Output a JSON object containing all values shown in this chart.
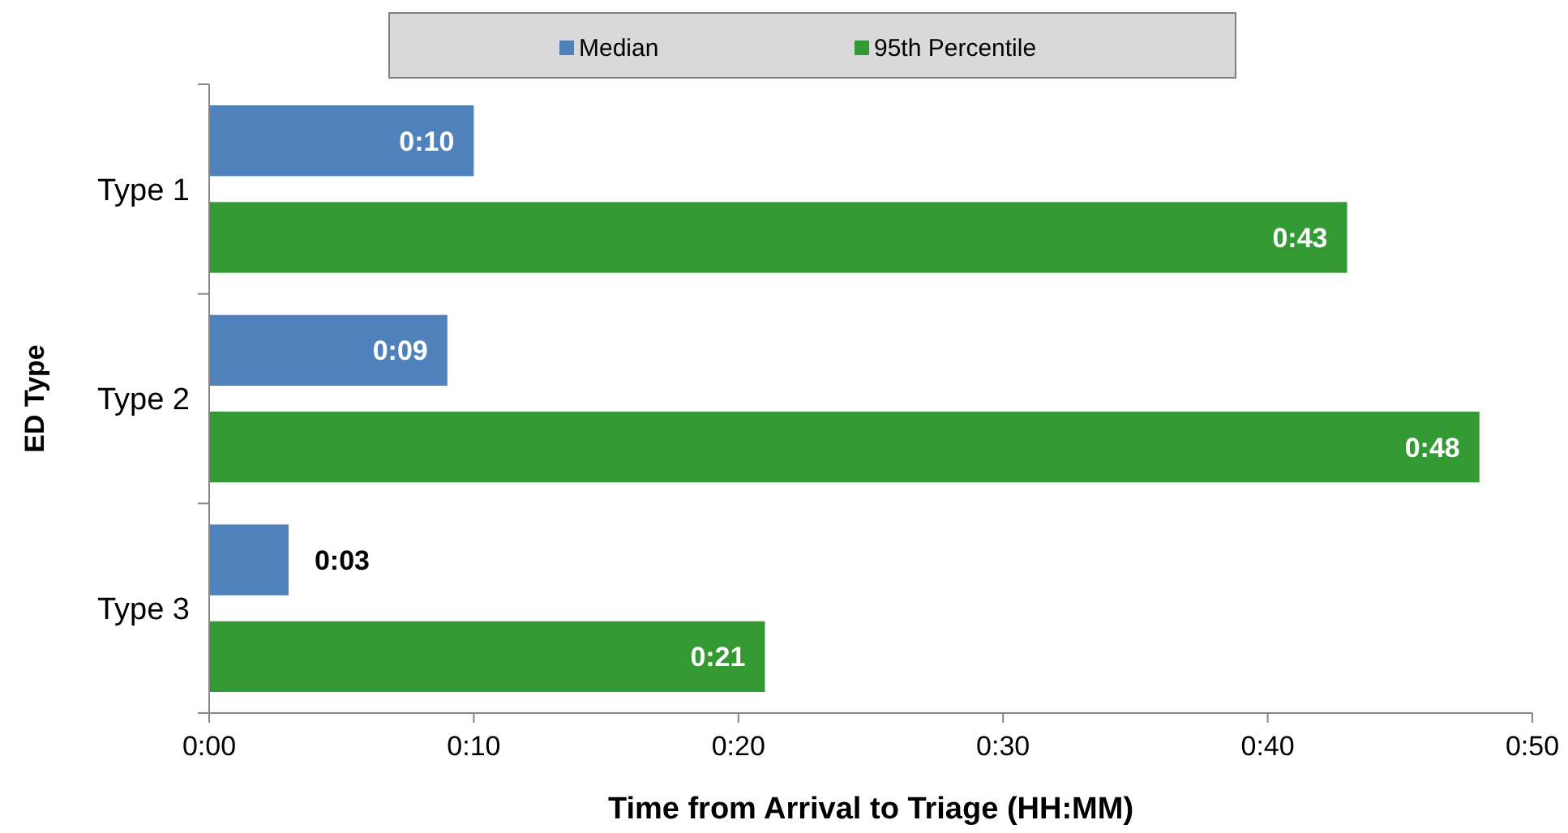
{
  "chart_data": {
    "type": "bar",
    "orientation": "horizontal",
    "xlabel": "Time from Arrival to Triage (HH:MM)",
    "ylabel": "ED Type",
    "categories": [
      "Type 1",
      "Type 2",
      "Type 3"
    ],
    "series": [
      {
        "name": "Median",
        "color": "#4f81bd",
        "values": [
          10,
          9,
          3
        ],
        "value_labels": [
          "0:10",
          "0:09",
          "0:03"
        ]
      },
      {
        "name": "95th Percentile",
        "color": "#339933",
        "values": [
          43,
          48,
          21
        ],
        "value_labels": [
          "0:43",
          "0:48",
          "0:21"
        ]
      }
    ],
    "xlim": [
      0,
      50
    ],
    "xticks": [
      {
        "value": 0,
        "label": "0:00"
      },
      {
        "value": 10,
        "label": "0:10"
      },
      {
        "value": 20,
        "label": "0:20"
      },
      {
        "value": 30,
        "label": "0:30"
      },
      {
        "value": 40,
        "label": "0:40"
      },
      {
        "value": 50,
        "label": "0:50"
      }
    ],
    "legend": "top",
    "grid": false
  }
}
